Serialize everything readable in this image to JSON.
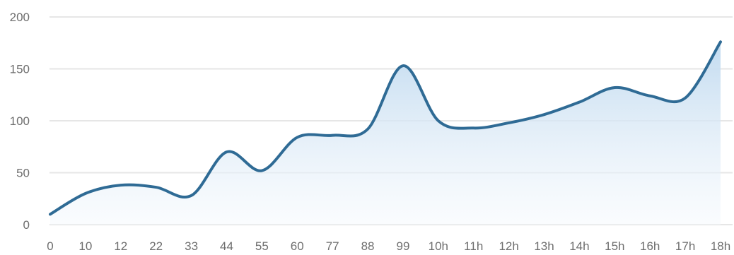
{
  "chart_data": {
    "type": "area",
    "title": "",
    "xlabel": "",
    "ylabel": "",
    "ylim": [
      0,
      200
    ],
    "grid": true,
    "line_color": "#2f6b95",
    "fill_color_top": "#bfd9ef",
    "fill_color_bottom": "#f5f9fd",
    "yticks": [
      "0",
      "50",
      "100",
      "150",
      "200"
    ],
    "categories": [
      "0",
      "10",
      "12",
      "22",
      "33",
      "44",
      "55",
      "60",
      "77",
      "88",
      "99",
      "10h",
      "11h",
      "12h",
      "13h",
      "14h",
      "15h",
      "16h",
      "17h",
      "18h"
    ],
    "values": [
      10,
      30,
      38,
      36,
      28,
      70,
      52,
      84,
      86,
      92,
      153,
      100,
      93,
      98,
      106,
      118,
      132,
      124,
      122,
      176
    ]
  }
}
